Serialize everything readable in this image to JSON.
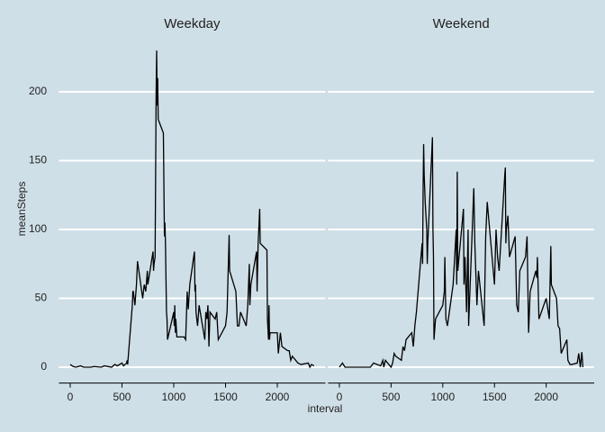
{
  "chart_data": {
    "type": "line",
    "xlabel": "interval",
    "ylabel": "meanSteps",
    "color": "#000000",
    "grid": true,
    "xlim": [
      -118,
      2473
    ],
    "ylim": [
      -11.5,
      241.5
    ],
    "xticks": [
      0,
      500,
      1000,
      1500,
      2000
    ],
    "yticks": [
      0,
      50,
      100,
      150,
      200
    ],
    "facets": [
      {
        "title": "Weekday",
        "x": [
          0,
          30,
          55,
          100,
          130,
          200,
          230,
          300,
          330,
          400,
          430,
          455,
          500,
          515,
          530,
          545,
          550,
          555,
          600,
          605,
          610,
          625,
          640,
          650,
          700,
          715,
          730,
          745,
          750,
          800,
          805,
          810,
          820,
          830,
          835,
          840,
          845,
          850,
          900,
          910,
          915,
          920,
          930,
          935,
          940,
          1000,
          1005,
          1010,
          1015,
          1020,
          1030,
          1100,
          1115,
          1130,
          1140,
          1155,
          1200,
          1205,
          1210,
          1215,
          1230,
          1245,
          1300,
          1310,
          1320,
          1330,
          1340,
          1350,
          1400,
          1415,
          1430,
          1500,
          1515,
          1535,
          1540,
          1600,
          1615,
          1630,
          1645,
          1700,
          1715,
          1730,
          1735,
          1745,
          1800,
          1805,
          1815,
          1830,
          1835,
          1900,
          1905,
          1915,
          1920,
          1925,
          1930,
          2000,
          2010,
          2030,
          2045,
          2100,
          2115,
          2130,
          2145,
          2200,
          2230,
          2300,
          2315,
          2330,
          2355
        ],
        "values": [
          2,
          0.5,
          0,
          1,
          0,
          0,
          0.5,
          0,
          1,
          0,
          2,
          1,
          3,
          1,
          2,
          3,
          5,
          2,
          45,
          55,
          55,
          45,
          60,
          77,
          50,
          60,
          55,
          70,
          60,
          84,
          70,
          75,
          80,
          200,
          230,
          190,
          210,
          180,
          170,
          95,
          105,
          90,
          40,
          35,
          20,
          40,
          30,
          45,
          25,
          35,
          22,
          22,
          20,
          55,
          42,
          60,
          84,
          55,
          60,
          40,
          30,
          45,
          20,
          40,
          35,
          45,
          15,
          40,
          35,
          40,
          20,
          30,
          40,
          96,
          70,
          55,
          30,
          30,
          40,
          30,
          45,
          75,
          45,
          60,
          84,
          55,
          90,
          115,
          90,
          85,
          35,
          20,
          45,
          20,
          25,
          25,
          10,
          25,
          15,
          12,
          12,
          5,
          8,
          3,
          2,
          3,
          0,
          2,
          1
        ]
      },
      {
        "title": "Weekend",
        "x": [
          0,
          30,
          55,
          100,
          200,
          300,
          330,
          400,
          420,
          430,
          445,
          500,
          515,
          530,
          545,
          600,
          615,
          630,
          645,
          700,
          715,
          730,
          745,
          800,
          805,
          810,
          815,
          820,
          830,
          845,
          850,
          855,
          900,
          905,
          910,
          915,
          930,
          1000,
          1015,
          1020,
          1030,
          1045,
          1100,
          1130,
          1135,
          1140,
          1145,
          1200,
          1205,
          1215,
          1230,
          1245,
          1250,
          1300,
          1310,
          1330,
          1345,
          1400,
          1415,
          1430,
          1500,
          1515,
          1530,
          1545,
          1600,
          1605,
          1610,
          1615,
          1630,
          1645,
          1700,
          1715,
          1730,
          1745,
          1800,
          1815,
          1830,
          1845,
          1900,
          1910,
          1915,
          1930,
          2000,
          2030,
          2045,
          2050,
          2100,
          2115,
          2130,
          2145,
          2200,
          2210,
          2230,
          2245,
          2300,
          2315,
          2330,
          2345,
          2355
        ],
        "values": [
          0,
          3,
          0,
          0,
          0,
          0,
          3,
          1,
          5,
          0,
          5,
          0,
          3,
          10,
          8,
          5,
          15,
          12,
          20,
          25,
          15,
          30,
          40,
          90,
          75,
          130,
          162,
          140,
          120,
          100,
          75,
          90,
          167,
          100,
          80,
          20,
          35,
          45,
          55,
          80,
          35,
          30,
          60,
          100,
          60,
          142,
          70,
          115,
          60,
          80,
          40,
          100,
          30,
          130,
          90,
          45,
          70,
          30,
          95,
          120,
          60,
          100,
          80,
          70,
          140,
          145,
          90,
          100,
          110,
          80,
          95,
          45,
          40,
          70,
          80,
          95,
          25,
          55,
          70,
          65,
          80,
          35,
          50,
          35,
          88,
          60,
          50,
          30,
          28,
          10,
          20,
          5,
          2,
          2,
          3,
          10,
          0,
          11,
          0
        ]
      }
    ]
  }
}
